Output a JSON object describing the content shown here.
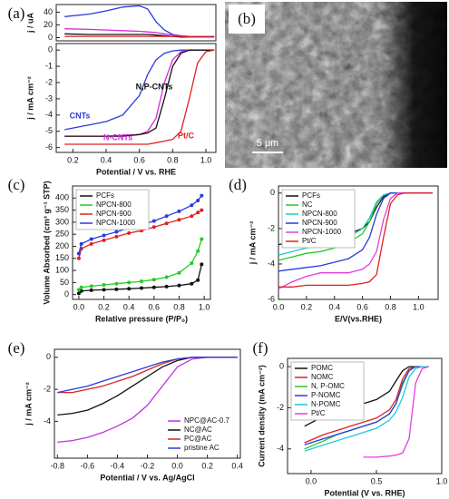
{
  "chart_data": [
    {
      "type": "line",
      "panel_label": "(a)",
      "ylabel": "j / uA",
      "x": [
        0.15,
        0.3,
        0.4,
        0.5,
        0.6,
        0.65,
        0.7,
        0.75,
        0.8,
        0.85,
        0.9,
        0.95,
        1.0,
        1.05
      ],
      "xlim": [
        0.1,
        1.06
      ],
      "ylim": [
        -5,
        52
      ],
      "yticks": [
        0,
        20,
        40
      ],
      "series": [
        {
          "color": "#2a3bd8",
          "values": [
            33,
            37,
            42,
            48,
            50,
            45,
            25,
            12,
            5,
            3,
            2,
            2,
            2,
            2
          ]
        },
        {
          "color": "#d62ad6",
          "values": [
            14,
            13,
            12,
            11,
            10,
            9,
            8,
            6,
            4,
            3,
            2,
            2,
            2,
            2
          ]
        },
        {
          "color": "#111111",
          "values": [
            6,
            5,
            5,
            5,
            5,
            5,
            4,
            3,
            2,
            1,
            1,
            1,
            1,
            1
          ]
        },
        {
          "color": "#e02020",
          "values": [
            2,
            2,
            2,
            2,
            2,
            2,
            2,
            2,
            2,
            2,
            1,
            1,
            1,
            1
          ]
        }
      ]
    },
    {
      "type": "line",
      "ylabel": "j / mA cm⁻²",
      "xlabel": "Potential / V vs. RHE",
      "legend": "inline",
      "x": [
        0.15,
        0.3,
        0.4,
        0.5,
        0.6,
        0.65,
        0.7,
        0.75,
        0.8,
        0.85,
        0.9,
        0.95,
        1.0,
        1.05
      ],
      "xlim": [
        0.1,
        1.06
      ],
      "ylim": [
        -6.3,
        0.4
      ],
      "xticks": [
        0.2,
        0.4,
        0.6,
        0.8,
        {
          "value": 1.0,
          "label": "1.0"
        }
      ],
      "yticks": [
        -6,
        -5,
        -4,
        -3,
        -2,
        -1,
        0
      ],
      "series": [
        {
          "name": "CNTs",
          "color": "#2a3bd8",
          "values": [
            -4.9,
            -4.6,
            -4.4,
            -4.0,
            -2.8,
            -1.5,
            -0.6,
            -0.2,
            -0.05,
            0,
            0,
            0,
            0,
            0
          ]
        },
        {
          "name": "N-CNTs",
          "color": "#d62ad6",
          "values": [
            -5.3,
            -5.3,
            -5.3,
            -5.25,
            -5.2,
            -5.0,
            -4.2,
            -2.0,
            -0.6,
            -0.1,
            0,
            0,
            0,
            0
          ]
        },
        {
          "name": "N,P-CNTs",
          "color": "#111111",
          "values": [
            -5.3,
            -5.3,
            -5.3,
            -5.3,
            -5.2,
            -5.1,
            -4.8,
            -3.0,
            -1.0,
            -0.2,
            0,
            0,
            0,
            0
          ]
        },
        {
          "name": "Pt/C",
          "color": "#e02020",
          "values": [
            -5.8,
            -5.8,
            -5.8,
            -5.8,
            -5.8,
            -5.8,
            -5.7,
            -5.6,
            -5.5,
            -5.0,
            -3.0,
            -0.8,
            -0.1,
            0
          ]
        }
      ]
    },
    {
      "type": "line",
      "panel_label": "(c)",
      "markers": true,
      "legend": "upper left",
      "xlabel": "Relative pressure (P/P₀)",
      "ylabel": "Volume Absorbed (cm³ g⁻¹ STP)",
      "x": [
        0,
        0.02,
        0.1,
        0.2,
        0.3,
        0.4,
        0.5,
        0.6,
        0.7,
        0.8,
        0.9,
        0.95,
        0.98
      ],
      "xlim": [
        -0.05,
        1.05
      ],
      "ylim": [
        -20,
        450
      ],
      "xticks": [
        {
          "value": 0,
          "label": "0.0"
        },
        0.2,
        0.4,
        0.6,
        0.8,
        {
          "value": 1.0,
          "label": "1.0"
        }
      ],
      "yticks": [
        0,
        50,
        100,
        150,
        200,
        250,
        300,
        350,
        400
      ],
      "series": [
        {
          "name": "PCFs",
          "color": "#111111",
          "values": [
            5,
            15,
            18,
            20,
            22,
            24,
            27,
            30,
            33,
            38,
            45,
            60,
            125
          ]
        },
        {
          "name": "NPCN-800",
          "color": "#22cc22",
          "values": [
            20,
            30,
            35,
            40,
            45,
            50,
            55,
            62,
            72,
            90,
            130,
            180,
            230
          ]
        },
        {
          "name": "NPCN-900",
          "color": "#e02020",
          "values": [
            150,
            190,
            210,
            225,
            240,
            255,
            265,
            280,
            295,
            310,
            325,
            340,
            350
          ]
        },
        {
          "name": "NPCN-1000",
          "color": "#2a3bd8",
          "values": [
            170,
            210,
            230,
            245,
            260,
            275,
            290,
            305,
            325,
            345,
            370,
            390,
            410
          ]
        }
      ]
    },
    {
      "type": "line",
      "panel_label": "(d)",
      "legend": "upper left",
      "xlabel": "E/V(vs.RHE)",
      "ylabel": "j / mA cm⁻²",
      "x": [
        0,
        0.1,
        0.2,
        0.3,
        0.4,
        0.5,
        0.6,
        0.65,
        0.7,
        0.75,
        0.8,
        0.85,
        0.9,
        1.0,
        1.1
      ],
      "xlim": [
        0,
        1.14
      ],
      "ylim": [
        -6,
        0.4
      ],
      "xticks": [
        {
          "value": 0,
          "label": "0.0"
        },
        0.2,
        0.4,
        0.6,
        0.8,
        {
          "value": 1.0,
          "label": "1.0"
        }
      ],
      "yticks": [
        -6,
        -4,
        -2,
        0
      ],
      "series": [
        {
          "name": "PCFs",
          "color": "#111111",
          "values": [
            -2.9,
            -2.8,
            -2.7,
            -2.6,
            -2.5,
            -2.3,
            -2.0,
            -1.6,
            -0.8,
            -0.2,
            0,
            0,
            0,
            0,
            0
          ]
        },
        {
          "name": "NC",
          "color": "#22cc22",
          "values": [
            -3.8,
            -3.6,
            -3.4,
            -3.3,
            -3.1,
            -2.8,
            -2.3,
            -1.6,
            -0.6,
            -0.1,
            0,
            0,
            0,
            0,
            0
          ]
        },
        {
          "name": "NPCN-800",
          "color": "#20c8c8",
          "values": [
            -3.5,
            -3.3,
            -3.1,
            -3.0,
            -2.8,
            -2.5,
            -2.0,
            -1.4,
            -0.5,
            -0.1,
            0,
            0,
            0,
            0,
            0
          ]
        },
        {
          "name": "NPCN-900",
          "color": "#2a3bd8",
          "values": [
            -4.4,
            -4.3,
            -4.2,
            -4.1,
            -3.9,
            -3.7,
            -3.2,
            -2.5,
            -1.2,
            -0.3,
            0,
            0,
            0,
            0,
            0
          ]
        },
        {
          "name": "NPCN-1000",
          "color": "#e040e0",
          "values": [
            -5.4,
            -5.0,
            -4.7,
            -4.5,
            -4.5,
            -4.5,
            -4.3,
            -4.0,
            -3.3,
            -1.5,
            -0.3,
            0,
            0,
            0,
            0
          ]
        },
        {
          "name": "Pt/C",
          "color": "#e02020",
          "values": [
            -5.3,
            -5.3,
            -5.2,
            -5.2,
            -5.2,
            -5.2,
            -5.1,
            -5.0,
            -4.6,
            -2.5,
            -0.6,
            -0.1,
            0,
            0,
            0
          ]
        }
      ]
    },
    {
      "type": "line",
      "panel_label": "(e)",
      "legend": "lower right",
      "xlabel": "Potential / V vs. Ag/AgCl",
      "ylabel": "j / mA cm⁻²",
      "x": [
        -0.8,
        -0.7,
        -0.6,
        -0.5,
        -0.4,
        -0.3,
        -0.2,
        -0.1,
        0,
        0.1,
        0.2,
        0.3,
        0.4
      ],
      "xlim": [
        -0.82,
        0.42
      ],
      "ylim": [
        -6.3,
        0.5
      ],
      "xticks": [
        -0.8,
        -0.6,
        -0.4,
        -0.2,
        {
          "value": 0,
          "label": "0.0"
        },
        0.2,
        0.4
      ],
      "yticks": [
        -4,
        -2,
        0
      ],
      "series": [
        {
          "name": "NPC@AC-0.7",
          "color": "#c030e0",
          "values": [
            -5.3,
            -5.2,
            -5.0,
            -4.7,
            -4.3,
            -3.8,
            -3.0,
            -1.8,
            -0.6,
            -0.1,
            0,
            0,
            0
          ]
        },
        {
          "name": "NC@AC",
          "color": "#111111",
          "values": [
            -3.6,
            -3.5,
            -3.3,
            -2.9,
            -2.4,
            -1.8,
            -1.2,
            -0.6,
            -0.2,
            0,
            0,
            0,
            0
          ]
        },
        {
          "name": "PC@AC",
          "color": "#e02020",
          "values": [
            -2.2,
            -2.2,
            -2.0,
            -1.8,
            -1.5,
            -1.2,
            -0.8,
            -0.4,
            -0.1,
            0,
            0,
            0,
            0
          ]
        },
        {
          "name": "pristine AC",
          "color": "#2a3bd8",
          "values": [
            -2.2,
            -2.0,
            -1.8,
            -1.5,
            -1.2,
            -0.9,
            -0.6,
            -0.3,
            -0.1,
            0,
            0,
            0,
            0
          ]
        }
      ]
    },
    {
      "type": "line",
      "panel_label": "(f)",
      "legend": "upper left",
      "xlabel": "Potential (V vs. RHE)",
      "ylabel": "Current density (mA cm⁻²)",
      "x": [
        -0.05,
        0.1,
        0.2,
        0.3,
        0.4,
        0.5,
        0.6,
        0.65,
        0.7,
        0.75,
        0.8,
        0.85,
        0.9
      ],
      "xlim": [
        -0.18,
        1.0
      ],
      "ylim": [
        -5.2,
        0.4
      ],
      "xticks": [
        {
          "value": 0,
          "label": "0.0"
        },
        0.5,
        {
          "value": 1.0,
          "label": "1.0"
        }
      ],
      "yticks": [
        -4,
        -2,
        0
      ],
      "series": [
        {
          "name": "POMC",
          "color": "#111111",
          "values": [
            -2.9,
            -2.4,
            -2.1,
            -1.9,
            -1.8,
            -1.6,
            -1.2,
            -0.7,
            -0.2,
            0,
            0,
            0,
            0
          ]
        },
        {
          "name": "NOMC",
          "color": "#e02020",
          "values": [
            -3.7,
            -3.3,
            -3.1,
            -2.9,
            -2.7,
            -2.5,
            -2.1,
            -1.6,
            -0.6,
            -0.1,
            0,
            0,
            0
          ]
        },
        {
          "name": "N, P-OMC",
          "color": "#22cc22",
          "values": [
            -4.0,
            -3.6,
            -3.3,
            -3.1,
            -2.9,
            -2.7,
            -2.3,
            -1.8,
            -0.9,
            -0.2,
            0,
            0,
            0
          ]
        },
        {
          "name": "P-NOMC",
          "color": "#2a3bd8",
          "values": [
            -3.8,
            -3.5,
            -3.3,
            -3.1,
            -2.9,
            -2.7,
            -2.3,
            -1.8,
            -0.8,
            -0.2,
            0,
            0,
            0
          ]
        },
        {
          "name": "N-POMC",
          "color": "#20c8e0",
          "values": [
            -4.1,
            -3.8,
            -3.6,
            -3.4,
            -3.2,
            -3.0,
            -2.6,
            -2.2,
            -1.5,
            -0.5,
            -0.1,
            0,
            0
          ]
        },
        {
          "name": "Pt/C",
          "color": "#e040e0",
          "values": [
            null,
            null,
            null,
            null,
            -4.4,
            -4.4,
            -4.35,
            -4.3,
            -4.2,
            -3.5,
            -0.8,
            -0.1,
            0
          ]
        }
      ]
    }
  ],
  "image": {
    "panel_label": "(b)",
    "scale_bar": "5 μm"
  }
}
